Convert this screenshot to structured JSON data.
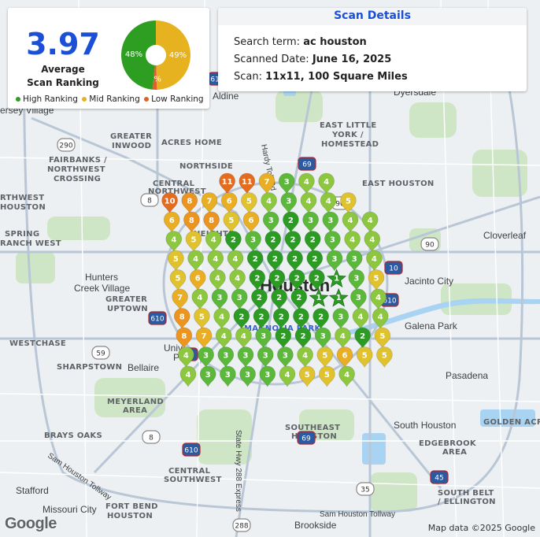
{
  "summary": {
    "average_value": "3.97",
    "average_label_line1": "Average",
    "average_label_line2": "Scan Ranking",
    "pie": [
      {
        "label": "48%",
        "value": 48,
        "color": "#2e9e22"
      },
      {
        "label": "49%",
        "value": 49,
        "color": "#e6b21f"
      },
      {
        "label": "2%",
        "value": 2,
        "color": "#e0602a"
      }
    ],
    "legend": [
      {
        "label": "High Ranking",
        "color": "#2e9e22"
      },
      {
        "label": "Mid Ranking",
        "color": "#e6b21f"
      },
      {
        "label": "Low Ranking",
        "color": "#e0602a"
      }
    ]
  },
  "details": {
    "title": "Scan Details",
    "search_term_label": "Search term:",
    "search_term_value": "ac houston",
    "date_label": "Scanned Date:",
    "date_value": "June 16, 2025",
    "scan_label": "Scan:",
    "scan_value": "11x11, 100 Square Miles"
  },
  "map": {
    "colors": {
      "high": "#3aa52f",
      "mid": "#e6c12a",
      "low": "#e56b1f",
      "water": "#a9d3f2",
      "park": "#cfe8c7"
    },
    "place_labels": [
      "Aldine",
      "Dyersdale",
      "ersey Village",
      "GREATER",
      "INWOOD",
      "ACRES HOME",
      "EAST LITTLE",
      "YORK /",
      "HOMESTEAD",
      "FAIRBANKS /",
      "NORTHWEST",
      "CROSSING",
      "NORTHSIDE",
      "CENTRAL",
      "NORTHWEST",
      "EAST HOUSTON",
      "RTHWEST",
      "HOUSTON",
      "SPRING",
      "RANCH WEST",
      "Cloverleaf",
      "Hunters",
      "Creek Village",
      "GREATER",
      "UPTOWN",
      "Jacinto City",
      "Galena Park",
      "WESTCHASE",
      "SHARPSTOWN",
      "Bellaire",
      "Pasadena",
      "MEYERLAND",
      "AREA",
      "BRAYS OAKS",
      "SOUTHEAST",
      "HOUSTON",
      "South Houston",
      "GOLDEN ACR",
      "EDGEBROOK",
      "AREA",
      "CENTRAL",
      "SOUTHWEST",
      "Stafford",
      "Missouri City",
      "FORT BEND",
      "HOUSTON",
      "Brookside",
      "SOUTH BELT",
      "/ ELLINGTON",
      "Sam Houston Tollway",
      "Hardy Toll Rd",
      "State Hwy 288 Express",
      "Houston",
      "MAGNOLIA PARK",
      "Univ",
      "Place",
      "HEIGHTS",
      "Sam Houston Tollway"
    ],
    "shields": [
      "290",
      "69",
      "90",
      "610",
      "10",
      "610",
      "45",
      "59",
      "610",
      "35",
      "90",
      "288",
      "69",
      "8",
      "45",
      "8",
      "610"
    ],
    "grid_values": [
      [
        null,
        null,
        null,
        11,
        11,
        7,
        3,
        4,
        4,
        null,
        null
      ],
      [
        10,
        8,
        7,
        6,
        5,
        4,
        3,
        4,
        4,
        5,
        null
      ],
      [
        6,
        8,
        8,
        5,
        6,
        3,
        2,
        3,
        3,
        4,
        4
      ],
      [
        4,
        5,
        4,
        2,
        3,
        2,
        2,
        2,
        3,
        4,
        4
      ],
      [
        5,
        4,
        4,
        4,
        2,
        2,
        2,
        2,
        3,
        3,
        4
      ],
      [
        5,
        6,
        4,
        4,
        2,
        2,
        2,
        2,
        1,
        3,
        5
      ],
      [
        7,
        4,
        3,
        3,
        2,
        2,
        2,
        1,
        1,
        3,
        4
      ],
      [
        8,
        5,
        4,
        2,
        2,
        2,
        2,
        2,
        3,
        4,
        4
      ],
      [
        8,
        7,
        4,
        4,
        3,
        2,
        2,
        3,
        4,
        2,
        5
      ],
      [
        4,
        3,
        3,
        3,
        3,
        3,
        4,
        5,
        6,
        5,
        5
      ],
      [
        4,
        3,
        3,
        3,
        3,
        4,
        5,
        5,
        4,
        null,
        null
      ]
    ]
  },
  "footer": {
    "google_logo": "Google",
    "attribution": "Map data ©2025 Google"
  }
}
